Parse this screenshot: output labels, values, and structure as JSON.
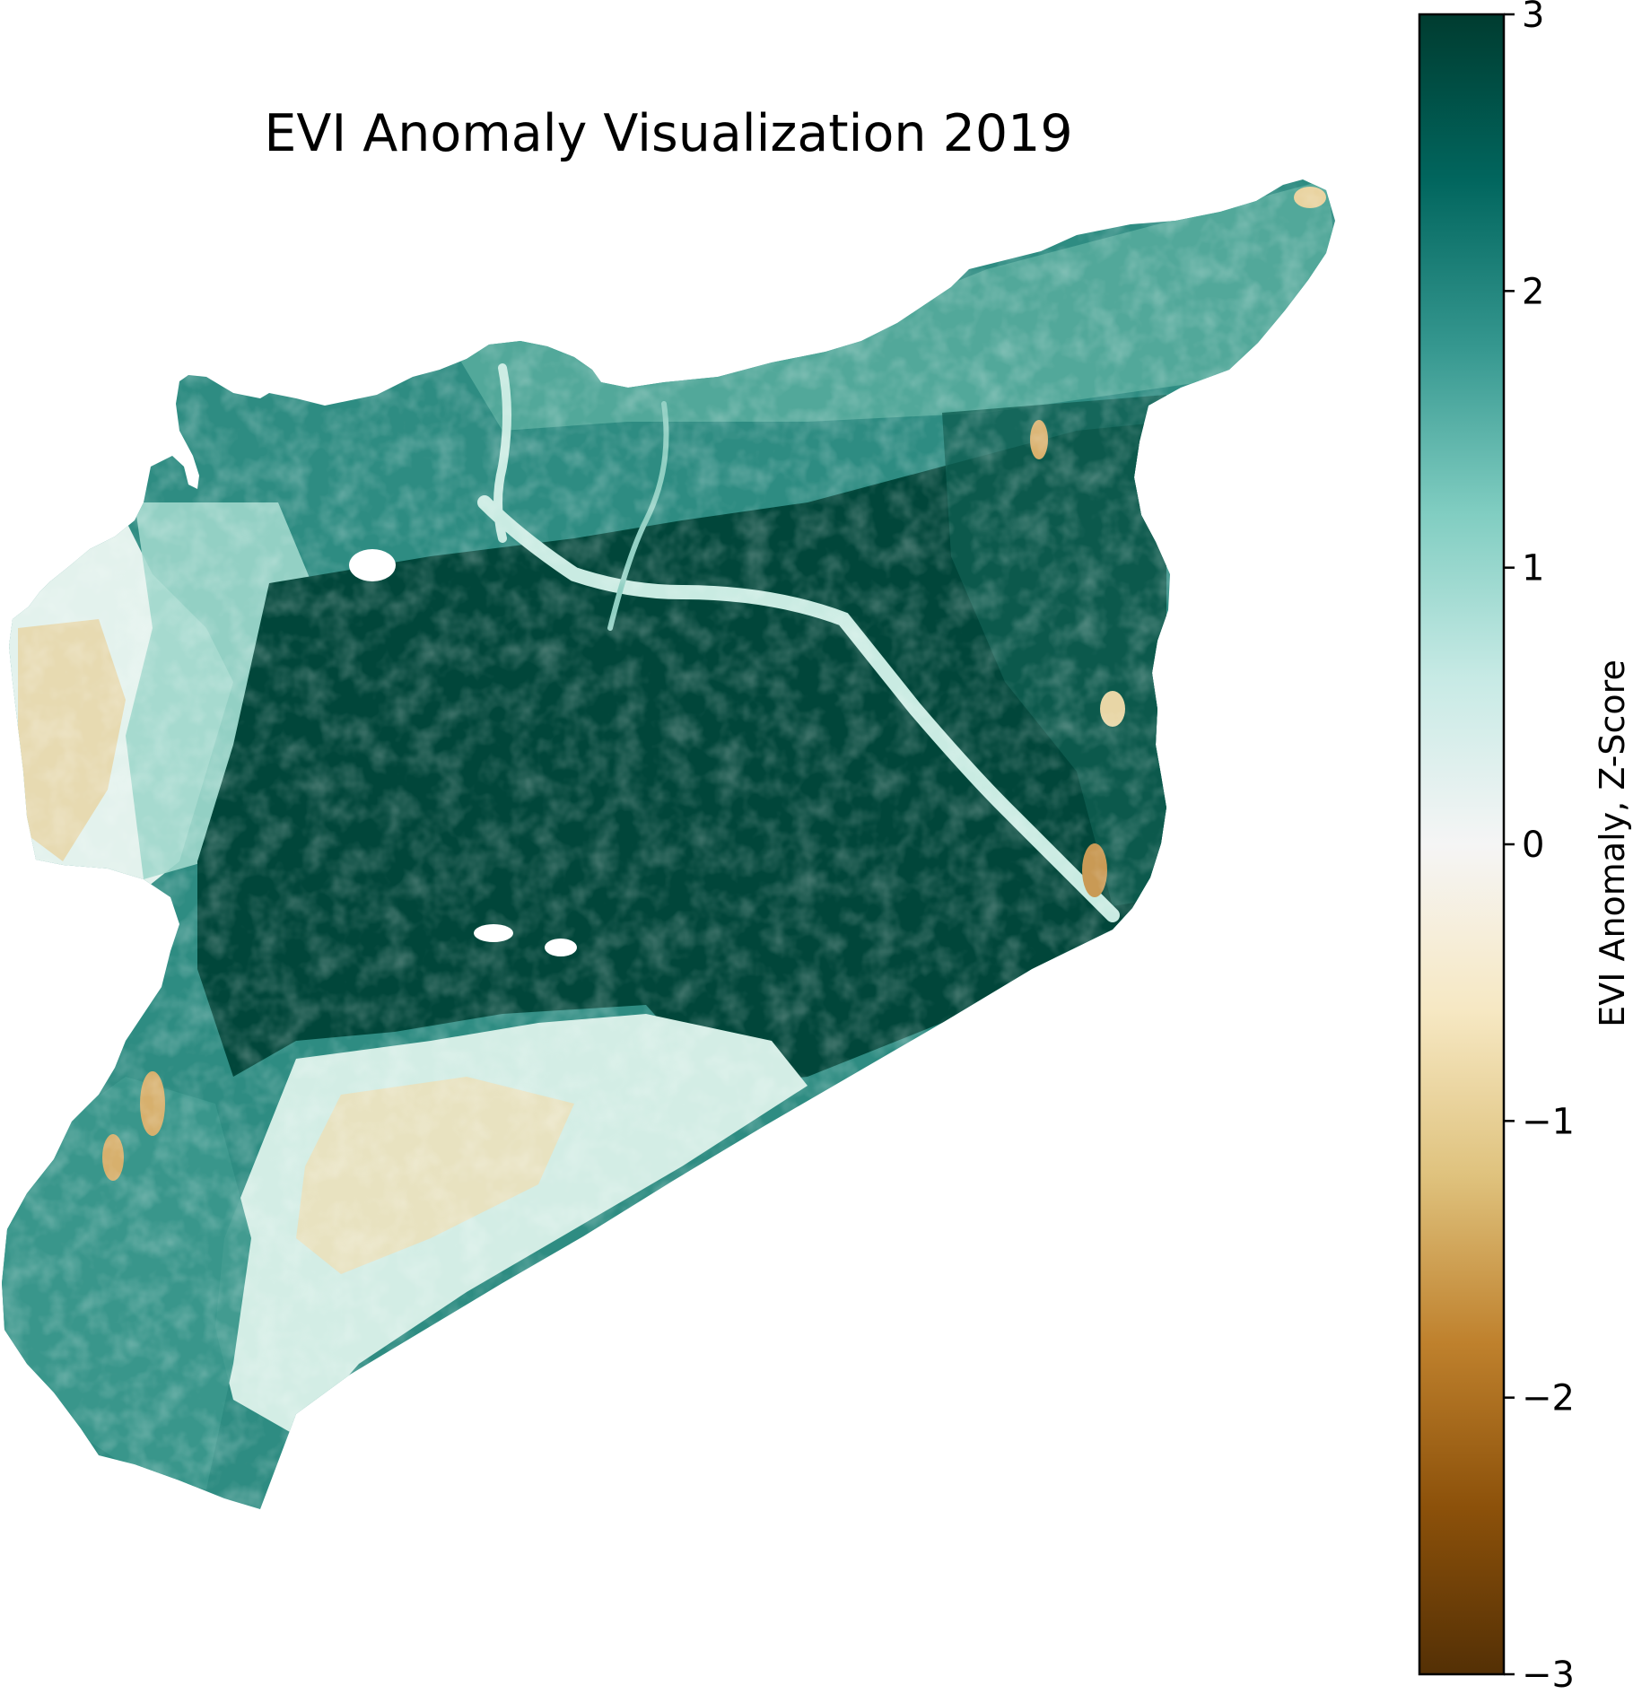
{
  "title": "EVI Anomaly Visualization 2019",
  "colorbar": {
    "label": "EVI Anomaly, Z-Score",
    "colormap": "BrBG",
    "vmin": -3,
    "vmax": 3,
    "ticks": [
      {
        "value": 3,
        "label": "3"
      },
      {
        "value": 2,
        "label": "2"
      },
      {
        "value": 1,
        "label": "1"
      },
      {
        "value": 0,
        "label": "0"
      },
      {
        "value": -1,
        "label": "−1"
      },
      {
        "value": -2,
        "label": "−2"
      },
      {
        "value": -3,
        "label": "−3"
      }
    ],
    "colors": {
      "deep_green": "#01463a",
      "teal": "#2a8f84",
      "light_teal": "#8fd3c6",
      "neutral": "#f5f5f5",
      "light_tan": "#efdfb3",
      "tan": "#d6b168",
      "brown": "#9d5d15",
      "dark_brown": "#543005"
    }
  },
  "map": {
    "region_colors": {
      "dominant": "#01463a",
      "north_plains": "#2e8c82",
      "west_coast": "#d8efe8",
      "south_mixed": "#cfece4",
      "dry_patches": "#e7c98b",
      "rivers": "#bfe6dd"
    }
  }
}
